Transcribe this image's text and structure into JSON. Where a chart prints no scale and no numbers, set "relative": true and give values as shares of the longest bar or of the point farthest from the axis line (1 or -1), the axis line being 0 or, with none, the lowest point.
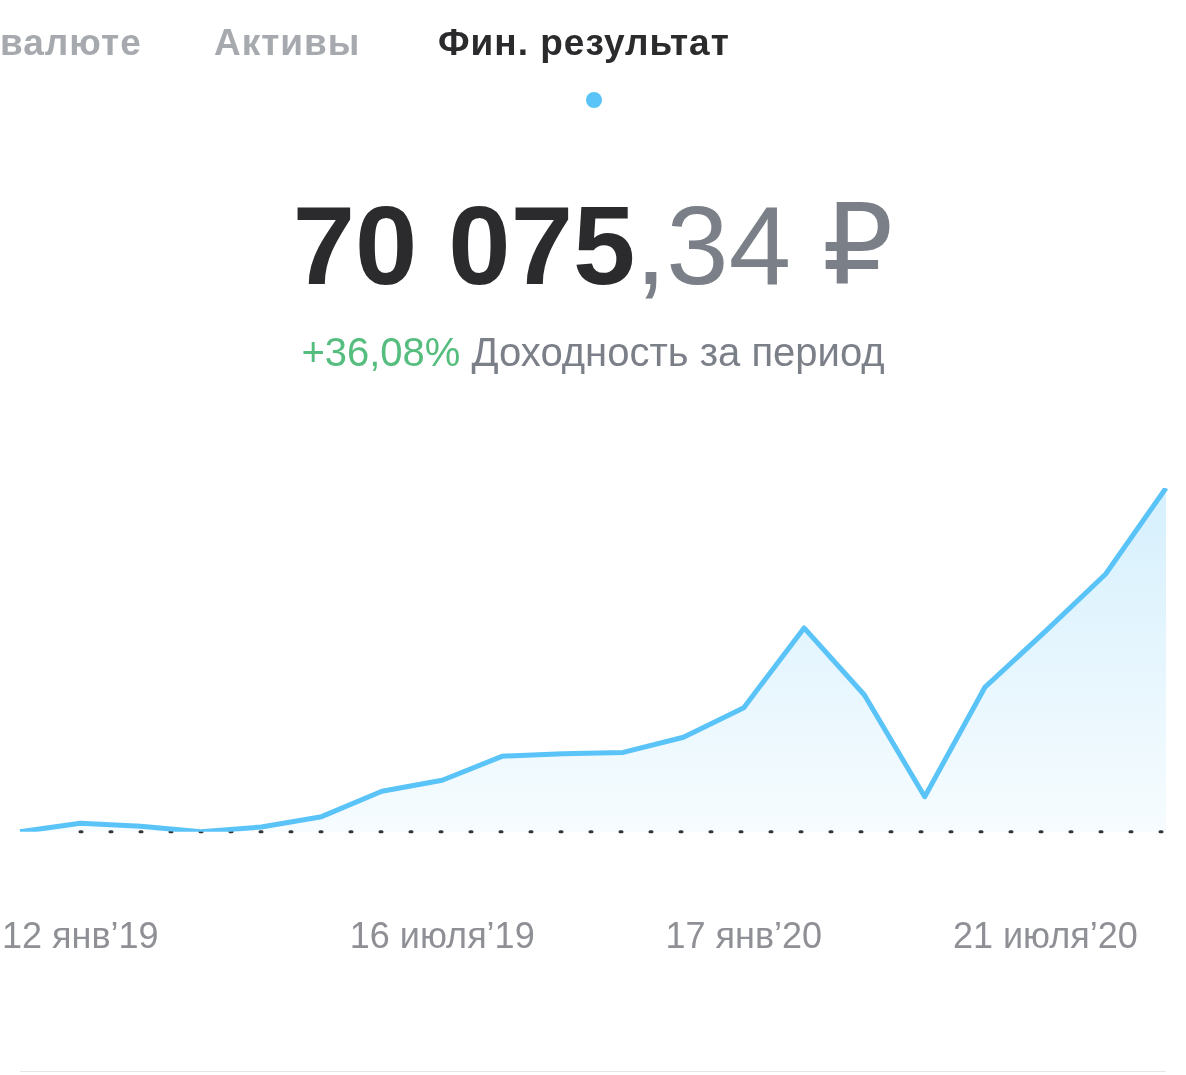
{
  "chart_data": {
    "type": "area",
    "title": "70 075,34 ₽",
    "subtitle": "+36,08% Доходность за период",
    "annotations": [
      "валюте",
      "Активы",
      "Фин. результат"
    ],
    "categories": [
      null,
      "12 янв’19",
      null,
      null,
      null,
      null,
      null,
      "16 июля’19",
      null,
      null,
      null,
      null,
      "17 янв’20",
      null,
      null,
      null,
      null,
      "21 июля’20",
      null,
      null
    ],
    "relative": true,
    "series": [
      {
        "color": "#5ac3f7",
        "values": [
          0,
          0.025,
          0.016,
          0,
          0.014,
          0.044,
          0.118,
          0.15,
          0.22,
          0.227,
          0.231,
          0.275,
          0.361,
          0.593,
          0.398,
          0.102,
          0.421,
          0.583,
          0.75,
          1
        ]
      }
    ],
    "ref_lines": [
      {
        "axis": "y",
        "value": 0,
        "color": "#333333",
        "line_style": "dotted"
      }
    ],
    "grid": false,
    "legend": false,
    "marker": "none",
    "line_style": "solid"
  }
}
